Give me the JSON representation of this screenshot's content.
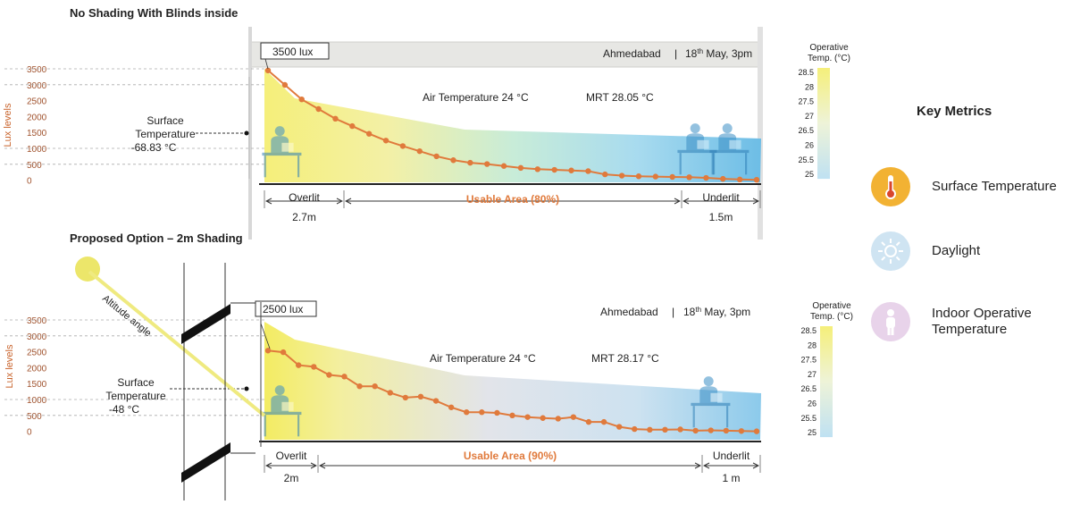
{
  "key_metrics": {
    "title": "Key Metrics",
    "items": [
      {
        "label": "Surface Temperature",
        "icon": "thermometer-icon",
        "color": "#f2b233"
      },
      {
        "label": "Daylight",
        "icon": "sun-icon",
        "color": "#cfe4f2"
      },
      {
        "label": "Indoor Operative Temperature",
        "icon": "person-icon",
        "color": "#e8d3ea"
      }
    ]
  },
  "colors": {
    "lux_curve": "#e07a3c",
    "axis_text": "#c8622a",
    "usable": "#e07a3c",
    "warm": "#f5ef8a",
    "cool": "#7cc3e8"
  },
  "chart_data": [
    {
      "type": "line",
      "title": "No Shading With Blinds inside",
      "ylabel": "Lux levels",
      "yticks": [
        "3500",
        "3000",
        "2500",
        "2000",
        "1500",
        "1000",
        "500",
        "0"
      ],
      "ylim": [
        0,
        3500
      ],
      "lux_box": "3500  lux",
      "location": "Ahmedabad",
      "date_day": "18",
      "date_sup": "th",
      "date_rest": " May, 3pm",
      "air_temp": "Air Temperature 24 °C",
      "mrt": "MRT 28.05 °C",
      "surface_temp_label": "Surface",
      "surface_temp_label2": "Temperature",
      "surface_temp_value": "-68.83 °C",
      "zones": [
        {
          "label": "Overlit",
          "dim": "2.7m"
        },
        {
          "label": "Usable Area (80%)",
          "dim": ""
        },
        {
          "label": "Underlit",
          "dim": "1.5m"
        }
      ],
      "legend_title": "Operative",
      "legend_title2": "Temp. (°C)",
      "legend_ticks": [
        "28.5",
        "28",
        "27.5",
        "27",
        "26.5",
        "26",
        "25.5",
        "25"
      ],
      "series": [
        {
          "values": [
            3450,
            3000,
            2550,
            2250,
            1950,
            1720,
            1480,
            1270,
            1100,
            940,
            780,
            660,
            580,
            540,
            480,
            420,
            380,
            360,
            340,
            320,
            220,
            180,
            160,
            150,
            140,
            130,
            110,
            80,
            60,
            50
          ]
        }
      ]
    },
    {
      "type": "line",
      "title": "Proposed Option – 2m Shading",
      "ylabel": "Lux levels",
      "yticks": [
        "3500",
        "3000",
        "2500",
        "2000",
        "1500",
        "1000",
        "500",
        "0"
      ],
      "ylim": [
        0,
        3500
      ],
      "lux_box": "2500  lux",
      "location": "Ahmedabad",
      "date_day": "18",
      "date_sup": "th",
      "date_rest": " May, 3pm",
      "air_temp": "Air Temperature 24 °C",
      "mrt": "MRT 28.17 °C",
      "surface_temp_label": "Surface",
      "surface_temp_label2": "Temperature",
      "surface_temp_value": "-48 °C",
      "altitude_label": "Altitude angle",
      "zones": [
        {
          "label": "Overlit",
          "dim": "2m"
        },
        {
          "label": "Usable Area (90%)",
          "dim": ""
        },
        {
          "label": "Underlit",
          "dim": "1 m"
        }
      ],
      "legend_title": "Operative",
      "legend_title2": "Temp. (°C)",
      "legend_ticks": [
        "28.5",
        "28",
        "27.5",
        "27",
        "26.5",
        "26",
        "25.5",
        "25"
      ],
      "series": [
        {
          "values": [
            2500,
            2450,
            2050,
            2000,
            1750,
            1700,
            1400,
            1400,
            1200,
            1050,
            1080,
            950,
            750,
            600,
            600,
            580,
            500,
            450,
            420,
            400,
            450,
            300,
            300,
            150,
            80,
            60,
            60,
            70,
            30,
            40,
            30,
            20,
            10
          ]
        }
      ]
    }
  ]
}
